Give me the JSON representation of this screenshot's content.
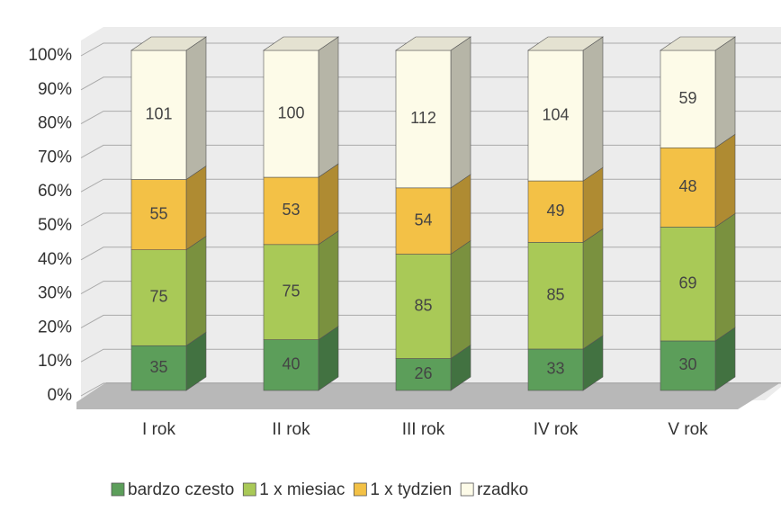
{
  "chart_data": {
    "type": "bar",
    "stacking": "percent",
    "categories": [
      "I rok",
      "II rok",
      "III rok",
      "IV rok",
      "V rok"
    ],
    "series": [
      {
        "name": "bardzo czesto",
        "color": "#5c9e5a",
        "values": [
          35,
          40,
          26,
          33,
          30
        ]
      },
      {
        "name": "1 x miesiac",
        "color": "#a9c957",
        "values": [
          75,
          75,
          85,
          85,
          69
        ]
      },
      {
        "name": "1 x tydzien",
        "color": "#f3c146",
        "values": [
          55,
          53,
          54,
          49,
          48
        ]
      },
      {
        "name": "rzadko",
        "color": "#fdfbe8",
        "values": [
          101,
          100,
          112,
          104,
          59
        ]
      }
    ],
    "ylim": [
      0,
      100
    ],
    "yticks": [
      {
        "value": 0,
        "label": "0%"
      },
      {
        "value": 10,
        "label": "10%"
      },
      {
        "value": 20,
        "label": "20%"
      },
      {
        "value": 30,
        "label": "30%"
      },
      {
        "value": 40,
        "label": "40%"
      },
      {
        "value": 50,
        "label": "50%"
      },
      {
        "value": 60,
        "label": "60%"
      },
      {
        "value": 70,
        "label": "70%"
      },
      {
        "value": 80,
        "label": "80%"
      },
      {
        "value": 90,
        "label": "90%"
      },
      {
        "value": 100,
        "label": "100%"
      }
    ],
    "grid": true,
    "legend": "bottom"
  }
}
